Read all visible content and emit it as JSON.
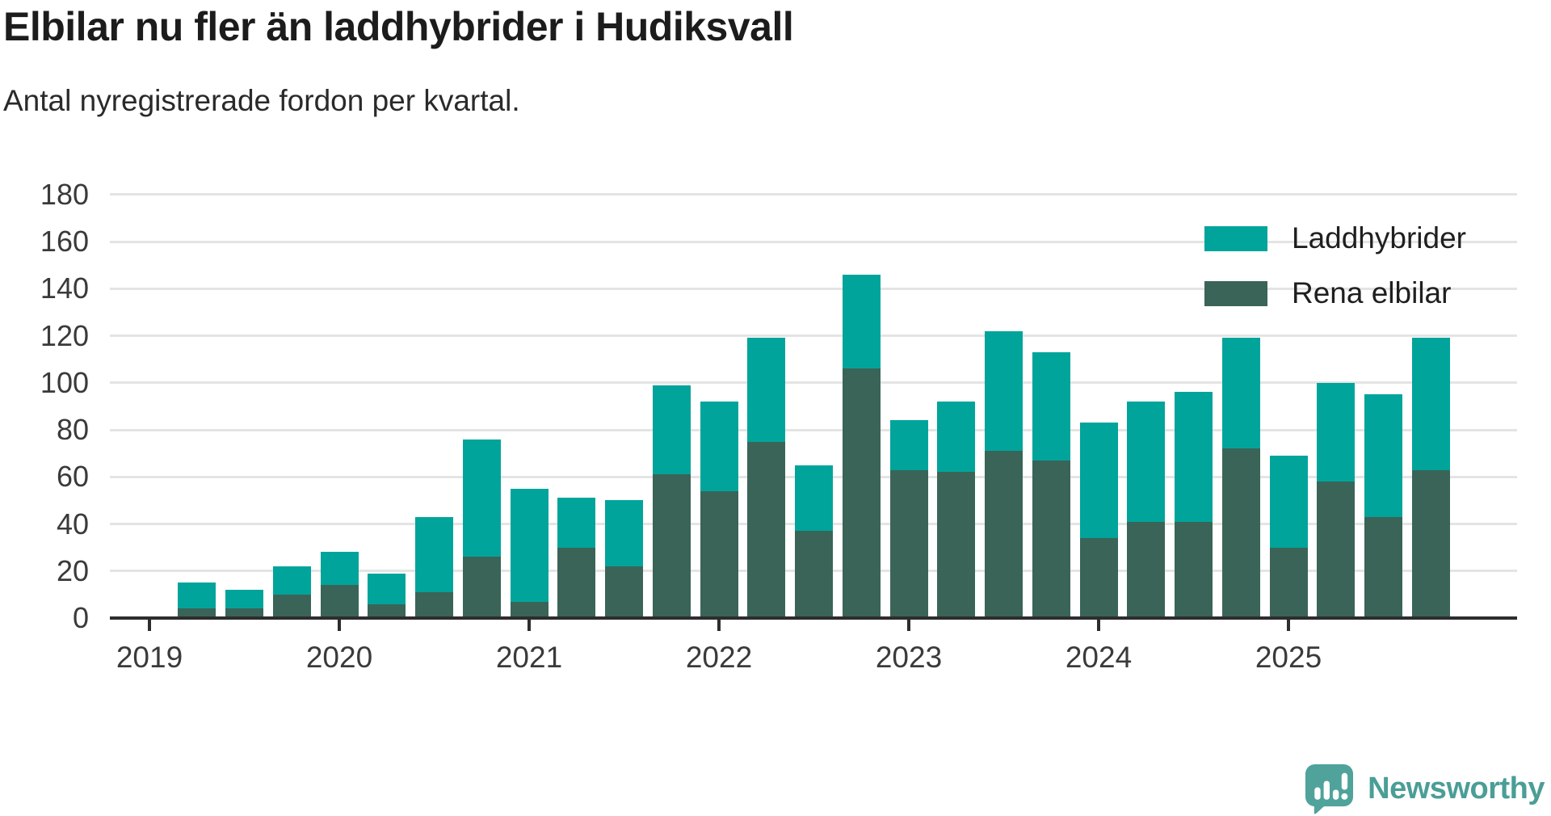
{
  "title": "Elbilar nu fler än laddhybrider i Hudiksvall",
  "subtitle": "Antal nyregistrerade fordon per kvartal.",
  "legend": {
    "items": [
      {
        "label": "Laddhybrider",
        "color": "#00a49b"
      },
      {
        "label": "Rena elbilar",
        "color": "#3a6458"
      }
    ]
  },
  "branding": {
    "name": "Newsworthy",
    "icon": "newsworthy-speech-bubble-chart-icon",
    "icon_color": "#4fa39b",
    "text_color": "#4a9e96"
  },
  "colors": {
    "gridline": "#e4e4e4",
    "axis_line": "#2d2d2d",
    "tick_label": "#3a3a3a",
    "title": "#1c1c1c",
    "subtitle": "#2a2a2a",
    "laddhybrider": "#00a49b",
    "rena_elbilar": "#3a6458"
  },
  "chart_data": {
    "type": "bar",
    "stacked": true,
    "title": "Elbilar nu fler än laddhybrider i Hudiksvall",
    "subtitle": "Antal nyregistrerade fordon per kvartal.",
    "x": [
      "2019 Q2",
      "2019 Q3",
      "2019 Q4",
      "2020 Q1",
      "2020 Q2",
      "2020 Q3",
      "2020 Q4",
      "2021 Q1",
      "2021 Q2",
      "2021 Q3",
      "2021 Q4",
      "2022 Q1",
      "2022 Q2",
      "2022 Q3",
      "2022 Q4",
      "2023 Q1",
      "2023 Q2",
      "2023 Q3",
      "2023 Q4",
      "2024 Q1",
      "2024 Q2",
      "2024 Q3",
      "2024 Q4",
      "2025 Q1",
      "2025 Q2",
      "2025 Q3",
      "2025 Q4"
    ],
    "series": [
      {
        "name": "Rena elbilar",
        "color": "#3a6458",
        "values": [
          4,
          4,
          10,
          14,
          6,
          11,
          26,
          7,
          30,
          22,
          61,
          54,
          75,
          37,
          106,
          63,
          62,
          71,
          67,
          34,
          41,
          41,
          72,
          30,
          58,
          43,
          63
        ]
      },
      {
        "name": "Laddhybrider",
        "color": "#00a49b",
        "values": [
          11,
          8,
          12,
          14,
          13,
          32,
          50,
          48,
          21,
          28,
          38,
          38,
          44,
          28,
          40,
          21,
          30,
          51,
          46,
          49,
          51,
          55,
          47,
          39,
          42,
          52,
          56
        ]
      }
    ],
    "totals": [
      15,
      12,
      22,
      28,
      19,
      43,
      76,
      55,
      51,
      50,
      99,
      92,
      119,
      65,
      146,
      84,
      92,
      122,
      113,
      83,
      92,
      96,
      119,
      69,
      100,
      95,
      119
    ],
    "xlabel": "",
    "ylabel": "",
    "ylim": [
      0,
      180
    ],
    "y_ticks": [
      0,
      20,
      40,
      60,
      80,
      100,
      120,
      140,
      160,
      180
    ],
    "x_ticks": [
      "2019",
      "2020",
      "2021",
      "2022",
      "2023",
      "2024",
      "2025"
    ],
    "grid": "horizontal",
    "legend_position": "top-right"
  }
}
